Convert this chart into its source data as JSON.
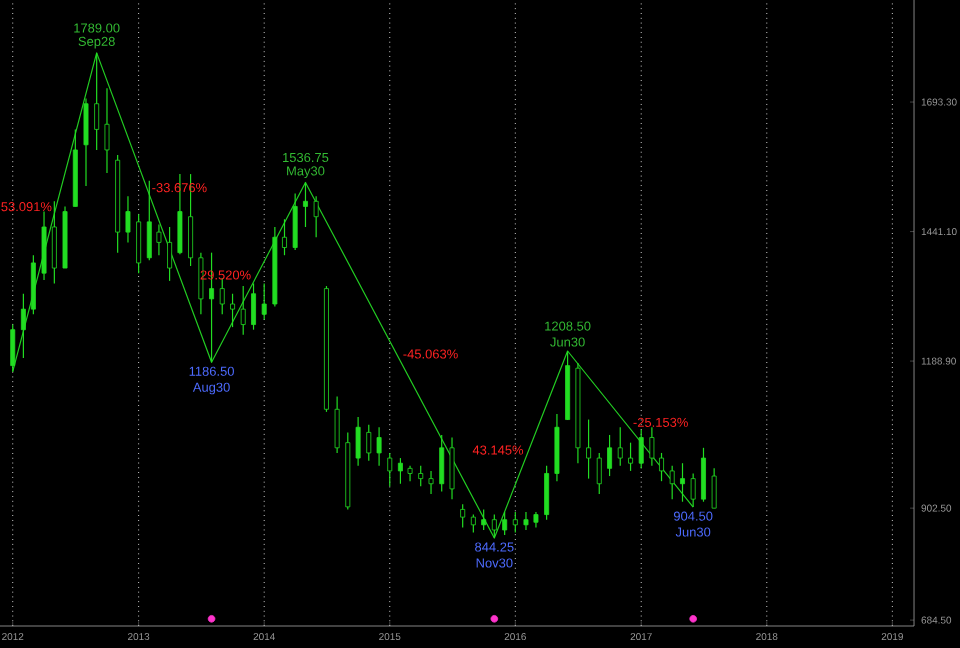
{
  "chart_data": {
    "type": "candlestick",
    "xlim": [
      "2011-11-25",
      "2019-03-05"
    ],
    "ylim": [
      673,
      1892
    ],
    "xticks": [
      "2012",
      "2013",
      "2014",
      "2015",
      "2016",
      "2017",
      "2018",
      "2019"
    ],
    "yticks": [
      {
        "value": 684.5,
        "label": "684.50"
      },
      {
        "value": 902.5,
        "label": "902.50"
      },
      {
        "value": 1188.9,
        "label": "1188.90"
      },
      {
        "value": 1441.1,
        "label": "1441.10"
      },
      {
        "value": 1693.3,
        "label": "1693.30"
      }
    ],
    "grid": "x",
    "series": [
      {
        "type": "candlestick",
        "color": "#22dd22",
        "x": [
          "2012-01",
          "2012-02",
          "2012-03",
          "2012-04",
          "2012-05",
          "2012-06",
          "2012-07",
          "2012-08",
          "2012-09",
          "2012-10",
          "2012-11",
          "2012-12",
          "2013-01",
          "2013-02",
          "2013-03",
          "2013-04",
          "2013-05",
          "2013-06",
          "2013-07",
          "2013-08",
          "2013-09",
          "2013-10",
          "2013-11",
          "2013-12",
          "2014-01",
          "2014-02",
          "2014-03",
          "2014-04",
          "2014-05",
          "2014-06",
          "2014-07",
          "2014-08",
          "2014-09",
          "2014-10",
          "2014-11",
          "2014-12",
          "2015-01",
          "2015-02",
          "2015-03",
          "2015-04",
          "2015-05",
          "2015-06",
          "2015-07",
          "2015-08",
          "2015-09",
          "2015-10",
          "2015-11",
          "2015-12",
          "2016-01",
          "2016-02",
          "2016-03",
          "2016-04",
          "2016-05",
          "2016-06",
          "2016-07",
          "2016-08",
          "2016-09",
          "2016-10",
          "2016-11",
          "2016-12",
          "2017-01",
          "2017-02",
          "2017-03",
          "2017-04",
          "2017-05",
          "2017-06",
          "2017-07",
          "2017-08"
        ],
        "ohlc": [
          [
            1180,
            1260,
            1168.25,
            1250
          ],
          [
            1250,
            1320,
            1195,
            1290
          ],
          [
            1290,
            1395,
            1280,
            1380
          ],
          [
            1360,
            1480,
            1347,
            1450
          ],
          [
            1450,
            1500,
            1340,
            1370
          ],
          [
            1370,
            1490,
            1370,
            1480
          ],
          [
            1490,
            1640,
            1490,
            1600
          ],
          [
            1610,
            1700,
            1530,
            1690
          ],
          [
            1690,
            1789,
            1600,
            1640
          ],
          [
            1650,
            1720,
            1555,
            1600
          ],
          [
            1580,
            1590,
            1400,
            1440
          ],
          [
            1440,
            1510,
            1420,
            1480
          ],
          [
            1460,
            1475,
            1360,
            1380
          ],
          [
            1390,
            1540,
            1385,
            1460
          ],
          [
            1440,
            1455,
            1395,
            1420
          ],
          [
            1420,
            1450,
            1345,
            1370
          ],
          [
            1400,
            1553,
            1397,
            1480
          ],
          [
            1470,
            1553,
            1374,
            1390
          ],
          [
            1390,
            1400,
            1280,
            1310
          ],
          [
            1310,
            1400,
            1186.5,
            1330
          ],
          [
            1330,
            1350,
            1280,
            1300
          ],
          [
            1300,
            1320,
            1255,
            1290
          ],
          [
            1290,
            1335,
            1240,
            1260
          ],
          [
            1260,
            1340,
            1250,
            1320
          ],
          [
            1280,
            1340,
            1270,
            1300
          ],
          [
            1300,
            1450,
            1295,
            1430
          ],
          [
            1430,
            1465,
            1395,
            1410
          ],
          [
            1410,
            1515,
            1405,
            1490
          ],
          [
            1490,
            1536.75,
            1450,
            1500
          ],
          [
            1500,
            1510,
            1430,
            1470
          ],
          [
            1330,
            1335,
            1090,
            1095
          ],
          [
            1095,
            1120,
            1010,
            1020
          ],
          [
            1030,
            1050,
            900,
            905
          ],
          [
            1000,
            1080,
            985,
            1060
          ],
          [
            1050,
            1065,
            995,
            1010
          ],
          [
            1010,
            1060,
            985,
            1040
          ],
          [
            1000,
            1010,
            945,
            975
          ],
          [
            975,
            1000,
            950,
            990
          ],
          [
            980,
            985,
            955,
            970
          ],
          [
            970,
            985,
            945,
            960
          ],
          [
            960,
            975,
            930,
            950
          ],
          [
            950,
            1045,
            935,
            1020
          ],
          [
            1020,
            1040,
            920,
            940
          ],
          [
            900,
            910,
            865,
            885
          ],
          [
            885,
            890,
            855,
            870
          ],
          [
            870,
            900,
            860,
            880
          ],
          [
            880,
            890,
            844.25,
            860
          ],
          [
            860,
            895,
            850,
            880
          ],
          [
            880,
            895,
            855,
            870
          ],
          [
            870,
            895,
            860,
            880
          ],
          [
            875,
            895,
            865,
            890
          ],
          [
            890,
            985,
            880,
            970
          ],
          [
            970,
            1086,
            955,
            1060
          ],
          [
            1075,
            1208.5,
            1074,
            1180
          ],
          [
            1175,
            1185,
            990,
            1020
          ],
          [
            1020,
            1075,
            960,
            1000
          ],
          [
            1000,
            1010,
            930,
            950
          ],
          [
            980,
            1045,
            965,
            1020
          ],
          [
            1020,
            1060,
            985,
            1000
          ],
          [
            1000,
            1030,
            975,
            990
          ],
          [
            990,
            1055,
            980,
            1040
          ],
          [
            1040,
            1060,
            985,
            1000
          ],
          [
            1000,
            1010,
            955,
            975
          ],
          [
            975,
            985,
            920,
            950
          ],
          [
            950,
            990,
            915,
            960
          ],
          [
            960,
            970,
            904.5,
            920
          ],
          [
            920,
            1020,
            915,
            1000
          ],
          [
            965,
            980,
            902.5,
            902.5
          ]
        ]
      },
      {
        "type": "line",
        "color": "#22cc22",
        "line_style": "solid",
        "x": [
          "2012-01",
          "2012-09",
          "2013-08",
          "2014-05",
          "2015-11",
          "2016-06",
          "2017-06"
        ],
        "values": [
          1168.25,
          1789,
          1186.5,
          1536.75,
          844.25,
          1208.5,
          904.5
        ]
      },
      {
        "type": "scatter",
        "color": "#ff33cc",
        "marker": "circle",
        "x": [
          "2013-08",
          "2015-11",
          "2017-06"
        ],
        "values": [
          687,
          687,
          687
        ]
      }
    ],
    "annotations": [
      {
        "text": "1789.00",
        "x": "2012-09",
        "y": 1789
      },
      {
        "text": "Sep28",
        "x": "2012-09",
        "y": 1789
      },
      {
        "text": "1186.50",
        "x": "2013-08",
        "y": 1186.5
      },
      {
        "text": "Aug30",
        "x": "2013-08",
        "y": 1186.5
      },
      {
        "text": "1536.75",
        "x": "2014-05",
        "y": 1536.75
      },
      {
        "text": "May30",
        "x": "2014-05",
        "y": 1536.75
      },
      {
        "text": "844.25",
        "x": "2015-11",
        "y": 844.25
      },
      {
        "text": "Nov30",
        "x": "2015-11",
        "y": 844.25
      },
      {
        "text": "1208.50",
        "x": "2016-06",
        "y": 1208.5
      },
      {
        "text": "Jun30",
        "x": "2016-06",
        "y": 1208.5
      },
      {
        "text": "904.50",
        "x": "2017-06",
        "y": 904.5
      },
      {
        "text": "Jun30",
        "x": "2017-06",
        "y": 904.5
      },
      {
        "text": "53.091%",
        "x": "2012-05-01",
        "y": 1476
      },
      {
        "text": "-33.676%",
        "x": "2013-02-01",
        "y": 1513
      },
      {
        "text": "29.520%",
        "x": "2013-12-01",
        "y": 1343
      },
      {
        "text": "-45.063%",
        "x": "2015-02-01",
        "y": 1189
      },
      {
        "text": "43.145%",
        "x": "2016-02-01",
        "y": 1002
      },
      {
        "text": "-25.153%",
        "x": "2016-12-01",
        "y": 1056
      }
    ]
  }
}
